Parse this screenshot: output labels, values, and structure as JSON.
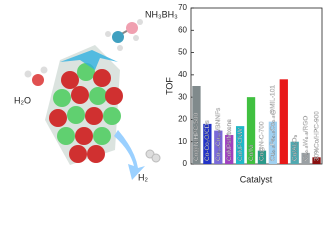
{
  "illustration_labels": [
    "NH₃BH₃",
    "H₂O",
    "H₂"
  ],
  "chart_data": {
    "type": "bar",
    "y_label": "TOF",
    "x_label": "Catalyst",
    "categories": [
      "Co@N/HPC-500",
      "Co-Co₂O/CDs",
      "Co₀.₇Cu₀.₃/BNNFs",
      "CoNPs/Mxene",
      "CoNPCNW",
      "Co/Ni",
      "Co@N-C-700",
      "Cu₀.₅Fe₀.₅Co₀.₅@MIL-101",
      "Cu0@Co0-C",
      "Co/Al₂O₃",
      "Cu₀.₅W₀.₅/RGO",
      "30%Co/HPC-900"
    ],
    "values": [
      35,
      18,
      15,
      13,
      17,
      30,
      6,
      19,
      38,
      10,
      5,
      3
    ],
    "colors": [
      "#808a8c",
      "#2233c8",
      "#7a6ad8",
      "#a040c0",
      "#20b8c8",
      "#40c040",
      "#2a9a8a",
      "#a0d0f0",
      "#e81818",
      "#50a8b0",
      "#9aa0a4",
      "#8a1010"
    ],
    "ylim": [
      0,
      70
    ],
    "yticks": [
      0,
      10,
      20,
      30,
      40,
      50,
      60,
      70
    ]
  }
}
